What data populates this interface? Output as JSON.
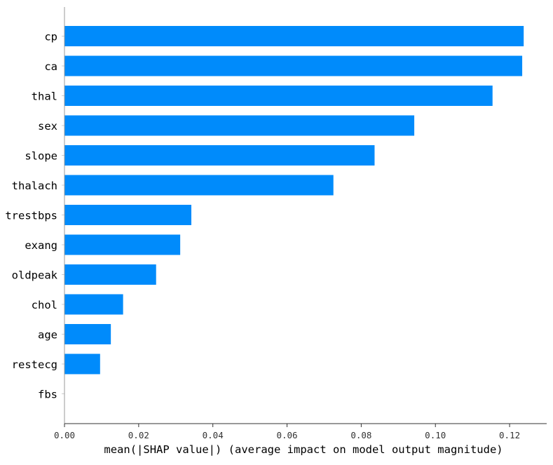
{
  "chart_data": {
    "type": "bar",
    "orientation": "horizontal",
    "categories": [
      "cp",
      "ca",
      "thal",
      "sex",
      "slope",
      "thalach",
      "trestbps",
      "exang",
      "oldpeak",
      "chol",
      "age",
      "restecg",
      "fbs"
    ],
    "values": [
      0.1238,
      0.1234,
      0.1154,
      0.0943,
      0.0836,
      0.0725,
      0.0342,
      0.0312,
      0.0247,
      0.0158,
      0.0125,
      0.0096,
      0.0
    ],
    "xlabel": "mean(|SHAP value|) (average impact on model output magnitude)",
    "ylabel": "",
    "xlim": [
      0.0,
      0.13
    ],
    "xticks": [
      0.0,
      0.02,
      0.04,
      0.06,
      0.08,
      0.1,
      0.12
    ],
    "xtick_labels": [
      "0.00",
      "0.02",
      "0.04",
      "0.06",
      "0.08",
      "0.10",
      "0.12"
    ],
    "bar_color": "#008bfb",
    "grid": false
  }
}
